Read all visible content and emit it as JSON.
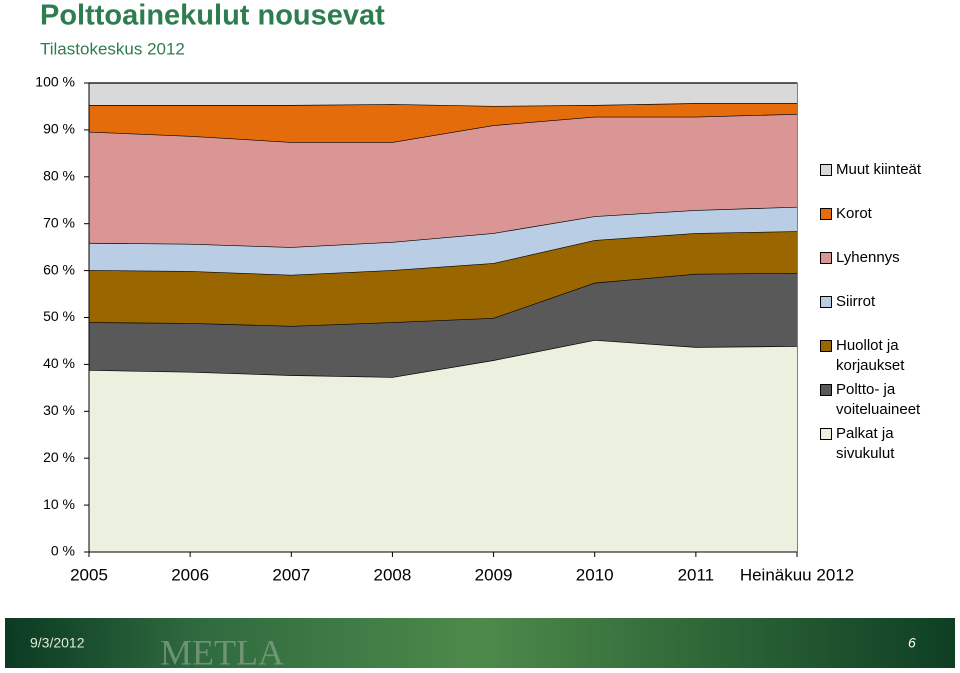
{
  "chart_data": {
    "type": "stacked_area",
    "title": "Polttoainekulut nousevat",
    "subtitle": "Tilastokeskus 2012",
    "categories": [
      "2005",
      "2006",
      "2007",
      "2008",
      "2009",
      "2010",
      "2011",
      "Heinäkuu 2012"
    ],
    "series": [
      {
        "name": "Palkat ja sivukulut",
        "color": "#ebf1de",
        "values": [
          38.8,
          38.4,
          37.7,
          37.3,
          40.9,
          45.2,
          43.7,
          43.9
        ]
      },
      {
        "name": "Poltto- ja voiteluaineet",
        "color": "#595959",
        "values": [
          10.2,
          10.4,
          10.5,
          11.7,
          9.0,
          12.2,
          15.6,
          15.6
        ]
      },
      {
        "name": "Huollot ja korjaukset",
        "color": "#996600",
        "values": [
          11.1,
          11.1,
          10.9,
          11.1,
          11.7,
          9.1,
          8.7,
          8.9
        ]
      },
      {
        "name": "Siirrot",
        "color": "#b9cde5",
        "values": [
          5.8,
          5.8,
          5.9,
          6.0,
          6.4,
          5.1,
          4.9,
          5.2
        ]
      },
      {
        "name": "Lyhennys",
        "color": "#d99694",
        "values": [
          23.7,
          23.0,
          22.4,
          21.3,
          23.0,
          21.2,
          19.9,
          19.8
        ]
      },
      {
        "name": "Korot",
        "color": "#e46c0a",
        "values": [
          5.7,
          6.6,
          7.9,
          8.1,
          4.1,
          2.5,
          2.9,
          2.3
        ]
      },
      {
        "name": "Muut kiinteät",
        "color": "#d9d9d9",
        "values": [
          4.7,
          4.7,
          4.7,
          4.5,
          4.9,
          4.7,
          4.3,
          4.3
        ]
      }
    ],
    "ylim": [
      0,
      100
    ],
    "yticks": [
      {
        "value": 0,
        "label": "0 %"
      },
      {
        "value": 10,
        "label": "10 %"
      },
      {
        "value": 20,
        "label": "20 %"
      },
      {
        "value": 30,
        "label": "30 %"
      },
      {
        "value": 40,
        "label": "40 %"
      },
      {
        "value": 50,
        "label": "50 %"
      },
      {
        "value": 60,
        "label": "60 %"
      },
      {
        "value": 70,
        "label": "70 %"
      },
      {
        "value": 80,
        "label": "80 %"
      },
      {
        "value": 90,
        "label": "90 %"
      },
      {
        "value": 100,
        "label": "100 %"
      }
    ],
    "legend": "right"
  },
  "footer": {
    "date": "9/3/2012",
    "logo": "METLA",
    "page": "6"
  }
}
